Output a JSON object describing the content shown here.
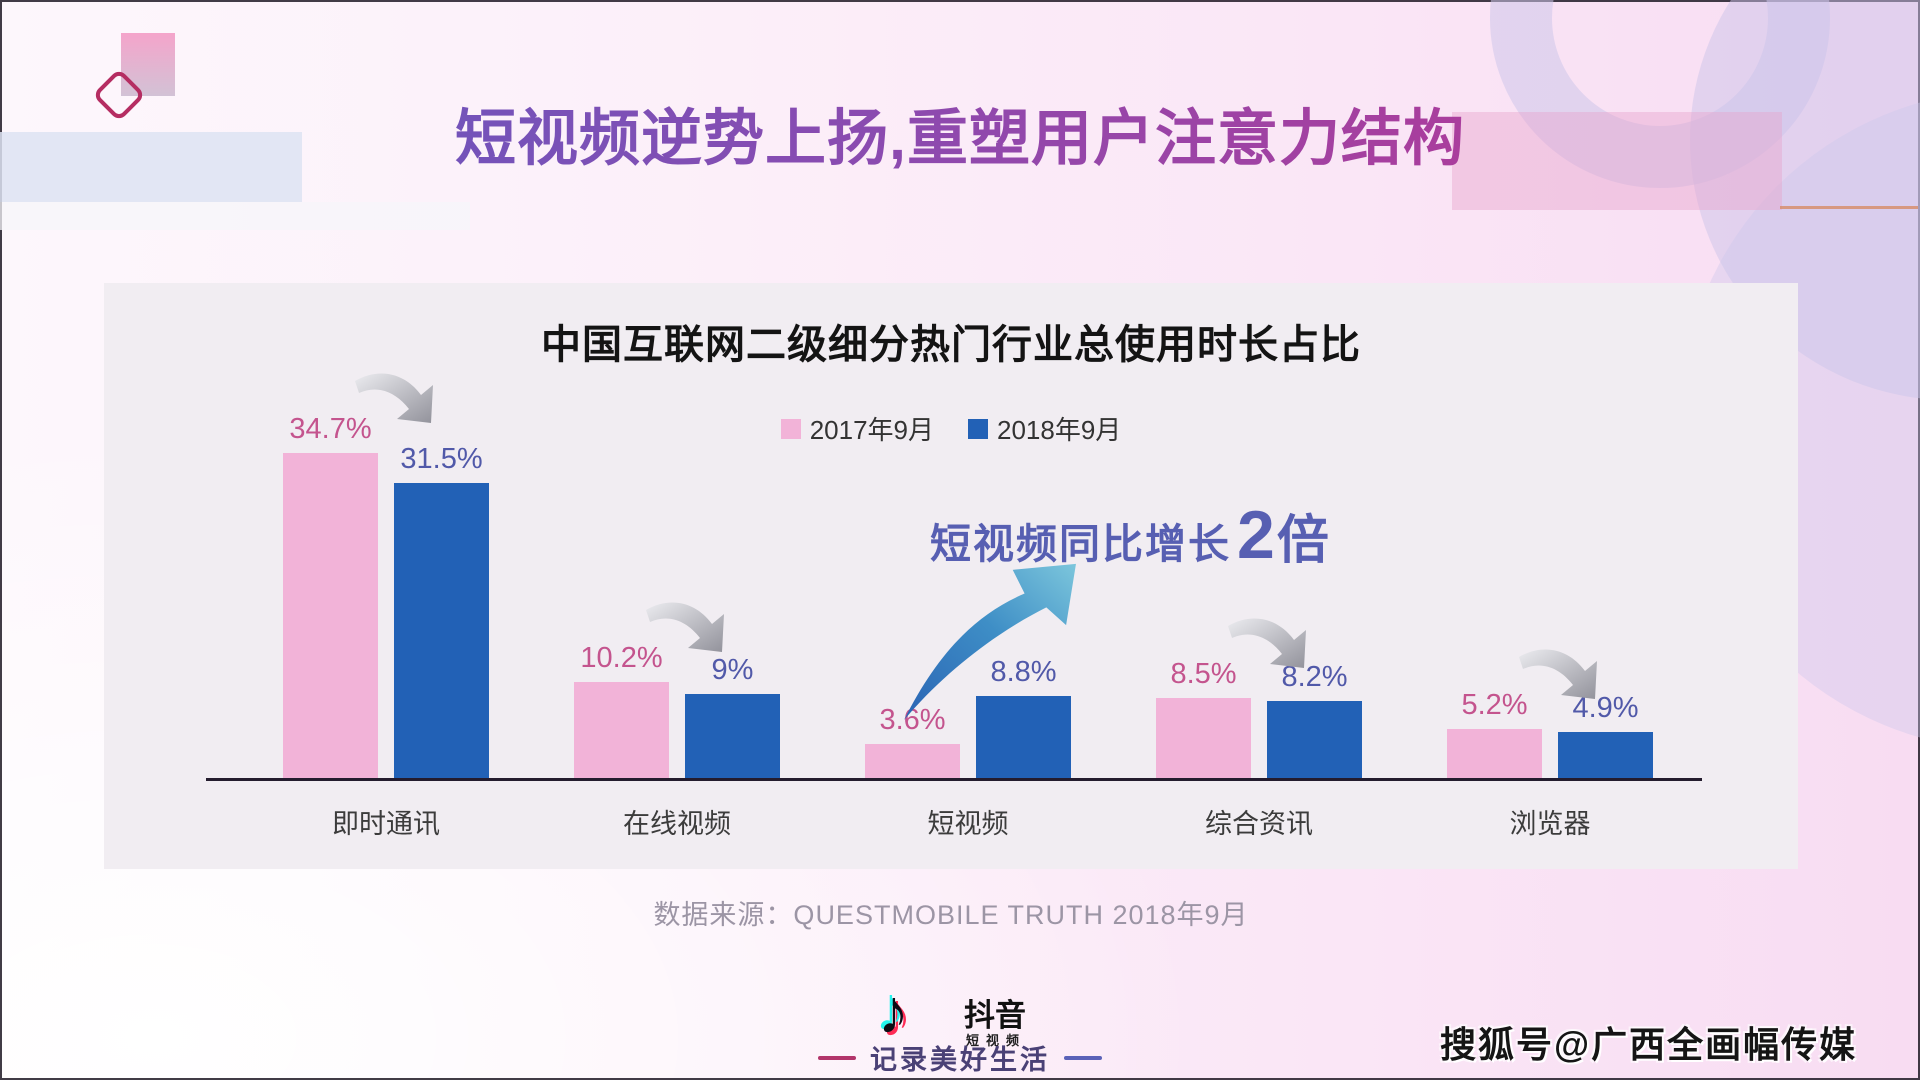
{
  "slide": {
    "title": "短视频逆势上扬,重塑用户注意力结构",
    "watermark": "搜狐号@广西全画幅传媒"
  },
  "chart_data": {
    "type": "bar",
    "title": "中国互联网二级细分热门行业总使用时长占比",
    "categories": [
      "即时通讯",
      "在线视频",
      "短视频",
      "综合资讯",
      "浏览器"
    ],
    "series": [
      {
        "name": "2017年9月",
        "color": "#F2B3D8",
        "label_color": "#C4548E",
        "values": [
          34.7,
          10.2,
          3.6,
          8.5,
          5.2
        ]
      },
      {
        "name": "2018年9月",
        "color": "#2261B6",
        "label_color": "#5159A9",
        "values": [
          31.5,
          9.0,
          8.8,
          8.2,
          4.9
        ]
      }
    ],
    "value_suffix": "%",
    "ylim": [
      0,
      40
    ],
    "grid": false,
    "legend_position": "top-center",
    "annotation": {
      "text": "短视频同比增长",
      "highlight": "2",
      "suffix": "倍",
      "color": "#575FB2"
    },
    "decline_arrow_groups": [
      0,
      1,
      3,
      4
    ],
    "growth_arrow_group": 2,
    "source": "数据来源：QUESTMOBILE TRUTH 2018年9月"
  },
  "footer": {
    "brand": "抖音",
    "brand_sub": "短视频",
    "tagline": "记录美好生活",
    "note_icon": "♪"
  },
  "colors": {
    "title_gradient": [
      "#5B5CC4",
      "#8A4BB0",
      "#C2338E"
    ],
    "page_bg": "#FBEFF9",
    "panel_bg": "#F1EDF2",
    "axis": "#241C2E",
    "gray_arrow_light": "#E9E9ED",
    "gray_arrow_dark": "#9A9AA2",
    "growth_arrow_light": "#7CC6DC",
    "growth_arrow_dark": "#2A64B4"
  }
}
